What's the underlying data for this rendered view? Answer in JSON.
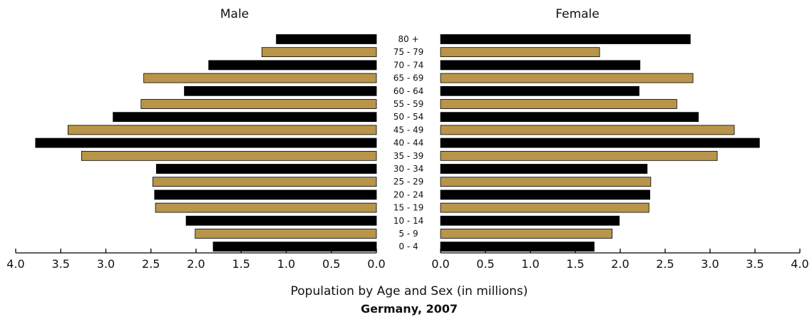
{
  "chart_data": {
    "type": "bar",
    "orientation": "horizontal",
    "layout": "population-pyramid",
    "panels": {
      "left_title": "Male",
      "right_title": "Female"
    },
    "categories": [
      "0 - 4",
      "5 - 9",
      "10 - 14",
      "15 - 19",
      "20 - 24",
      "25 - 29",
      "30 - 34",
      "35 - 39",
      "40 - 44",
      "45 - 49",
      "50 - 54",
      "55 - 59",
      "60 - 64",
      "65 - 69",
      "70 - 74",
      "75 - 79",
      "80 +"
    ],
    "series": [
      {
        "name": "Male",
        "values": [
          1.81,
          2.01,
          2.11,
          2.45,
          2.46,
          2.48,
          2.44,
          3.27,
          3.78,
          3.42,
          2.92,
          2.61,
          2.13,
          2.58,
          1.86,
          1.27,
          1.11
        ]
      },
      {
        "name": "Female",
        "values": [
          1.71,
          1.91,
          1.99,
          2.32,
          2.33,
          2.34,
          2.3,
          3.08,
          3.55,
          3.27,
          2.87,
          2.63,
          2.21,
          2.81,
          2.22,
          1.77,
          2.78
        ]
      }
    ],
    "bar_colors": [
      "#000000",
      "#b8954a"
    ],
    "xlim": [
      0,
      4
    ],
    "x_ticks": [
      "0.0",
      "0.5",
      "1.0",
      "1.5",
      "2.0",
      "2.5",
      "3.0",
      "3.5",
      "4.0"
    ],
    "left_x_ticks": [
      "4.0",
      "3.5",
      "3.0",
      "2.5",
      "2.0",
      "1.5",
      "1.0",
      "0.5",
      "0.0"
    ],
    "xlabel": "Population by Age and Sex (in millions)",
    "subtitle": "Germany, 2007",
    "grid": false
  }
}
